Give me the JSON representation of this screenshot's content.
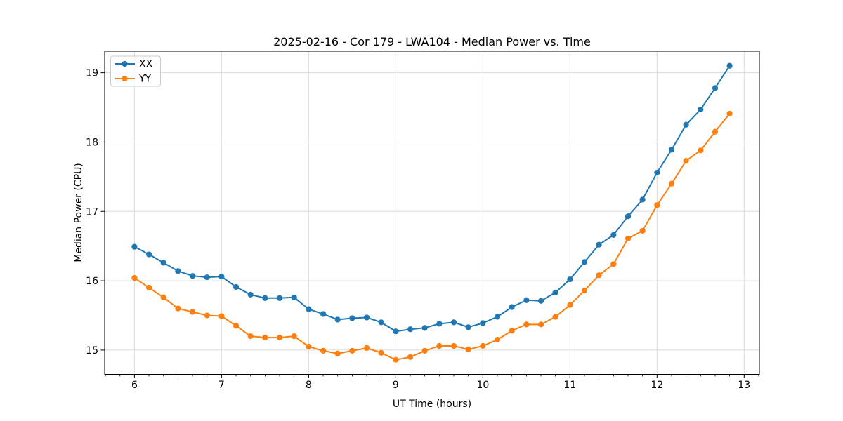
{
  "figure": {
    "title": "2025-02-16 - Cor 179 - LWA104 - Median Power vs. Time"
  },
  "chart_data": {
    "type": "line",
    "title": "2025-02-16 - Cor 179 - LWA104 - Median Power vs. Time",
    "xlabel": "UT Time (hours)",
    "ylabel": "Median Power (CPU)",
    "xlim": [
      5.658,
      13.175
    ],
    "ylim": [
      14.65,
      19.31
    ],
    "xticks": [
      6,
      7,
      8,
      9,
      10,
      11,
      12,
      13
    ],
    "yticks": [
      15,
      16,
      17,
      18,
      19
    ],
    "minor_xtick_interval": 0.166667,
    "grid": true,
    "grid_color": "#dcdcdc",
    "axis_color": "#000000",
    "background_color": "#ffffff",
    "legend": {
      "position": "upper-left"
    },
    "x": [
      6.0,
      6.167,
      6.333,
      6.5,
      6.667,
      6.833,
      7.0,
      7.167,
      7.333,
      7.5,
      7.667,
      7.833,
      8.0,
      8.167,
      8.333,
      8.5,
      8.667,
      8.833,
      9.0,
      9.167,
      9.333,
      9.5,
      9.667,
      9.833,
      10.0,
      10.167,
      10.333,
      10.5,
      10.667,
      10.833,
      11.0,
      11.167,
      11.333,
      11.5,
      11.667,
      11.833,
      12.0,
      12.167,
      12.333,
      12.5,
      12.667,
      12.833
    ],
    "series": [
      {
        "name": "XX",
        "color": "#1f77b4",
        "marker": "circle",
        "values": [
          16.49,
          16.38,
          16.26,
          16.14,
          16.07,
          16.05,
          16.06,
          15.91,
          15.8,
          15.75,
          15.75,
          15.76,
          15.59,
          15.52,
          15.44,
          15.46,
          15.47,
          15.4,
          15.27,
          15.3,
          15.32,
          15.38,
          15.4,
          15.33,
          15.39,
          15.48,
          15.62,
          15.72,
          15.71,
          15.83,
          16.02,
          16.27,
          16.52,
          16.66,
          16.93,
          17.17,
          17.56,
          17.89,
          18.25,
          18.47,
          18.78,
          19.1
        ]
      },
      {
        "name": "YY",
        "color": "#ff7f0e",
        "marker": "circle",
        "values": [
          16.04,
          15.9,
          15.76,
          15.6,
          15.55,
          15.5,
          15.49,
          15.35,
          15.2,
          15.18,
          15.18,
          15.2,
          15.05,
          14.99,
          14.95,
          14.99,
          15.03,
          14.96,
          14.86,
          14.9,
          14.99,
          15.06,
          15.06,
          15.01,
          15.06,
          15.15,
          15.28,
          15.37,
          15.37,
          15.48,
          15.65,
          15.86,
          16.08,
          16.24,
          16.61,
          16.72,
          17.09,
          17.4,
          17.73,
          17.88,
          18.15,
          18.41
        ]
      }
    ]
  }
}
